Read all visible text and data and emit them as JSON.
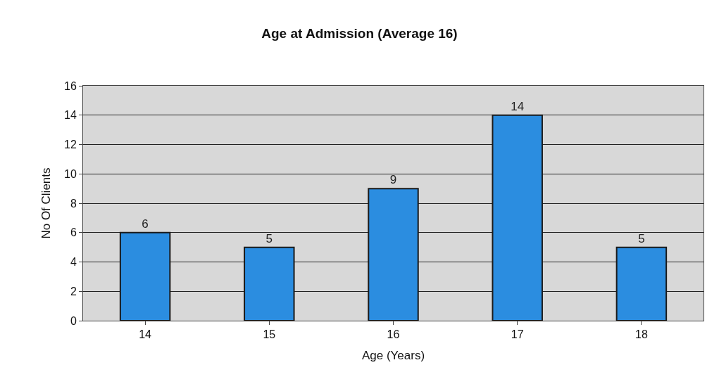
{
  "chart_data": {
    "type": "bar",
    "title": "Age at Admission (Average 16)",
    "xlabel": "Age (Years)",
    "ylabel": "No Of Clients",
    "categories": [
      "14",
      "15",
      "16",
      "17",
      "18"
    ],
    "values": [
      6,
      5,
      9,
      14,
      5
    ],
    "color": "#2b8de0",
    "ylim": [
      0,
      16
    ],
    "yticks": [
      0,
      2,
      4,
      6,
      8,
      10,
      12,
      14,
      16
    ],
    "grid": "y",
    "data_labels": true
  }
}
